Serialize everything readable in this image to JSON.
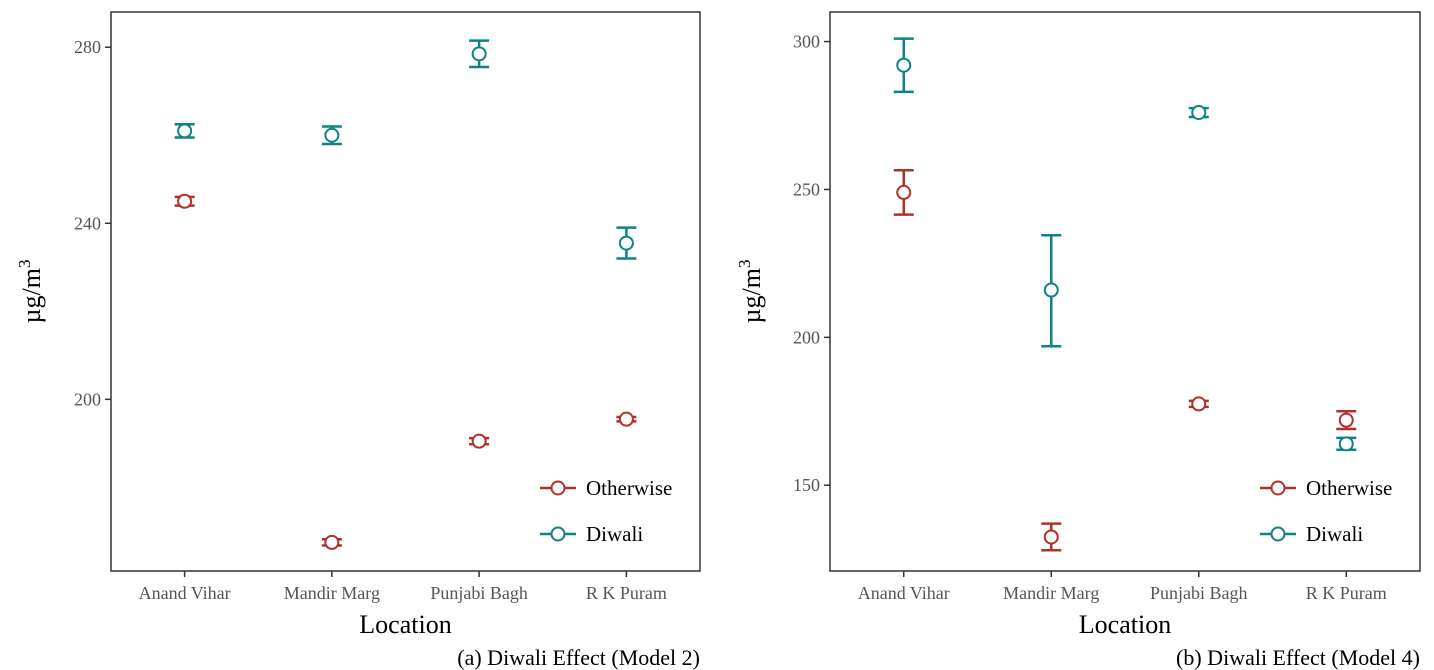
{
  "chart_data": [
    {
      "type": "scatter",
      "caption": "(a) Diwali Effect (Model 2)",
      "xlabel": "Location",
      "ylabel": "µg/m",
      "ylabel_sup": "3",
      "categories": [
        "Anand Vihar",
        "Mandir Marg",
        "Punjabi Bagh",
        "R K Puram"
      ],
      "ylim": [
        161,
        288
      ],
      "yticks": [
        200,
        240,
        280
      ],
      "legend_position": "bottom-right",
      "grid": false,
      "series": [
        {
          "name": "Otherwise",
          "color": "#b0302a",
          "values": [
            245,
            167.5,
            190.5,
            195.5
          ],
          "lower": [
            244,
            166.8,
            189.8,
            195
          ],
          "upper": [
            246,
            168.2,
            191.2,
            196
          ]
        },
        {
          "name": "Diwali",
          "color": "#0f8282",
          "values": [
            261,
            260,
            278.5,
            235.5
          ],
          "lower": [
            259.5,
            258,
            275.5,
            232
          ],
          "upper": [
            262.5,
            262,
            281.5,
            239
          ]
        }
      ]
    },
    {
      "type": "scatter",
      "caption": "(b) Diwali Effect (Model 4)",
      "xlabel": "Location",
      "ylabel": "µg/m",
      "ylabel_sup": "3",
      "categories": [
        "Anand Vihar",
        "Mandir Marg",
        "Punjabi Bagh",
        "R K Puram"
      ],
      "ylim": [
        121,
        310
      ],
      "yticks": [
        150,
        200,
        250,
        300
      ],
      "legend_position": "bottom-right",
      "grid": false,
      "series": [
        {
          "name": "Otherwise",
          "color": "#b0302a",
          "values": [
            249,
            132.5,
            177.5,
            172
          ],
          "lower": [
            241.5,
            128,
            176.5,
            169
          ],
          "upper": [
            256.5,
            137,
            178.5,
            175
          ]
        },
        {
          "name": "Diwali",
          "color": "#0f8282",
          "values": [
            292,
            216,
            276,
            164
          ],
          "lower": [
            283,
            197,
            274.5,
            162
          ],
          "upper": [
            301,
            234.5,
            277.5,
            166
          ]
        }
      ]
    }
  ]
}
